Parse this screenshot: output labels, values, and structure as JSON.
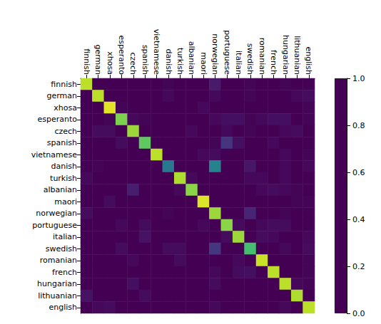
{
  "chart_data": {
    "type": "heatmap",
    "categories": [
      "finnish",
      "german",
      "xhosa",
      "esperanto",
      "czech",
      "spanish",
      "vietnamese",
      "danish",
      "turkish",
      "albanian",
      "maori",
      "norwegian",
      "portuguese",
      "italian",
      "swedish",
      "romanian",
      "french",
      "hungarian",
      "lithuanian",
      "english"
    ],
    "color": "viridis",
    "values": [
      [
        0.9,
        0.0,
        0.0,
        0.0,
        0.0,
        0.0,
        0.0,
        0.01,
        0.0,
        0.0,
        0.0,
        0.07,
        0.0,
        0.0,
        0.01,
        0.0,
        0.0,
        0.01,
        0.0,
        0.0
      ],
      [
        0.0,
        0.9,
        0.0,
        0.0,
        0.0,
        0.0,
        0.0,
        0.02,
        0.0,
        0.0,
        0.0,
        0.02,
        0.0,
        0.0,
        0.01,
        0.0,
        0.0,
        0.0,
        0.02,
        0.03
      ],
      [
        0.0,
        0.0,
        0.96,
        0.01,
        0.0,
        0.0,
        0.0,
        0.0,
        0.0,
        0.0,
        0.02,
        0.0,
        0.0,
        0.0,
        0.0,
        0.0,
        0.0,
        0.0,
        0.0,
        0.01
      ],
      [
        0.0,
        0.0,
        0.01,
        0.8,
        0.02,
        0.01,
        0.0,
        0.0,
        0.0,
        0.0,
        0.0,
        0.02,
        0.04,
        0.04,
        0.01,
        0.02,
        0.04,
        0.04,
        0.0,
        0.01
      ],
      [
        0.0,
        0.03,
        0.03,
        0.0,
        0.85,
        0.0,
        0.0,
        0.0,
        0.0,
        0.02,
        0.0,
        0.0,
        0.02,
        0.0,
        0.01,
        0.0,
        0.0,
        0.02,
        0.03,
        0.0
      ],
      [
        0.0,
        0.0,
        0.0,
        0.03,
        0.0,
        0.75,
        0.0,
        0.0,
        0.0,
        0.0,
        0.0,
        0.01,
        0.15,
        0.04,
        0.0,
        0.0,
        0.02,
        0.0,
        0.0,
        0.0
      ],
      [
        0.0,
        0.0,
        0.0,
        0.0,
        0.0,
        0.0,
        0.9,
        0.0,
        0.0,
        0.0,
        0.02,
        0.03,
        0.0,
        0.0,
        0.0,
        0.0,
        0.0,
        0.02,
        0.0,
        0.01
      ],
      [
        0.0,
        0.01,
        0.0,
        0.0,
        0.0,
        0.0,
        0.0,
        0.4,
        0.0,
        0.0,
        0.0,
        0.45,
        0.0,
        0.0,
        0.06,
        0.0,
        0.0,
        0.02,
        0.0,
        0.02
      ],
      [
        0.02,
        0.0,
        0.0,
        0.0,
        0.0,
        0.0,
        0.0,
        0.0,
        0.88,
        0.02,
        0.0,
        0.0,
        0.0,
        0.0,
        0.02,
        0.02,
        0.0,
        0.02,
        0.0,
        0.0
      ],
      [
        0.0,
        0.0,
        0.0,
        0.0,
        0.08,
        0.0,
        0.0,
        0.0,
        0.02,
        0.82,
        0.0,
        0.0,
        0.0,
        0.0,
        0.0,
        0.02,
        0.03,
        0.02,
        0.01,
        0.0
      ],
      [
        0.0,
        0.0,
        0.03,
        0.0,
        0.0,
        0.0,
        0.0,
        0.0,
        0.0,
        0.0,
        0.95,
        0.0,
        0.0,
        0.0,
        0.0,
        0.0,
        0.0,
        0.0,
        0.01,
        0.01
      ],
      [
        0.03,
        0.0,
        0.0,
        0.0,
        0.0,
        0.0,
        0.0,
        0.01,
        0.0,
        0.0,
        0.0,
        0.85,
        0.0,
        0.0,
        0.1,
        0.0,
        0.0,
        0.01,
        0.0,
        0.0
      ],
      [
        0.0,
        0.0,
        0.0,
        0.02,
        0.0,
        0.03,
        0.0,
        0.0,
        0.0,
        0.0,
        0.02,
        0.0,
        0.82,
        0.03,
        0.0,
        0.02,
        0.03,
        0.03,
        0.0,
        0.0
      ],
      [
        0.0,
        0.0,
        0.0,
        0.0,
        0.0,
        0.05,
        0.0,
        0.0,
        0.0,
        0.0,
        0.0,
        0.0,
        0.03,
        0.85,
        0.0,
        0.03,
        0.02,
        0.0,
        0.0,
        0.02
      ],
      [
        0.0,
        0.0,
        0.0,
        0.03,
        0.0,
        0.0,
        0.0,
        0.03,
        0.03,
        0.0,
        0.0,
        0.16,
        0.0,
        0.0,
        0.7,
        0.0,
        0.0,
        0.02,
        0.0,
        0.03
      ],
      [
        0.0,
        0.0,
        0.0,
        0.0,
        0.02,
        0.0,
        0.0,
        0.0,
        0.03,
        0.0,
        0.0,
        0.0,
        0.0,
        0.02,
        0.0,
        0.92,
        0.0,
        0.0,
        0.0,
        0.01
      ],
      [
        0.0,
        0.0,
        0.0,
        0.0,
        0.0,
        0.0,
        0.0,
        0.0,
        0.0,
        0.0,
        0.0,
        0.02,
        0.0,
        0.03,
        0.04,
        0.0,
        0.9,
        0.0,
        0.0,
        0.01
      ],
      [
        0.0,
        0.0,
        0.0,
        0.0,
        0.04,
        0.0,
        0.0,
        0.0,
        0.0,
        0.0,
        0.0,
        0.03,
        0.0,
        0.0,
        0.0,
        0.0,
        0.0,
        0.9,
        0.02,
        0.01
      ],
      [
        0.05,
        0.0,
        0.0,
        0.0,
        0.0,
        0.03,
        0.0,
        0.0,
        0.0,
        0.0,
        0.0,
        0.0,
        0.0,
        0.0,
        0.0,
        0.0,
        0.0,
        0.0,
        0.88,
        0.0
      ],
      [
        0.0,
        0.02,
        0.03,
        0.0,
        0.0,
        0.0,
        0.0,
        0.0,
        0.0,
        0.0,
        0.0,
        0.02,
        0.0,
        0.0,
        0.0,
        0.0,
        0.0,
        0.02,
        0.0,
        0.9
      ]
    ],
    "colorbar": {
      "range": [
        0,
        1
      ],
      "ticks": [
        {
          "value": 0,
          "label": "0.0"
        },
        {
          "value": 0.2,
          "label": "0.2"
        },
        {
          "value": 0.4,
          "label": "0.4"
        },
        {
          "value": 0.6,
          "label": "0.6"
        },
        {
          "value": 0.8,
          "label": "0.8"
        },
        {
          "value": 1,
          "label": "1.0"
        }
      ]
    }
  }
}
